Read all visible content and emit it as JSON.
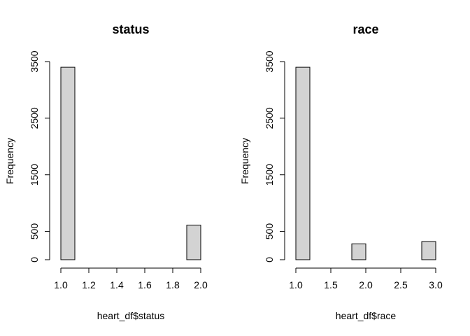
{
  "chart_data": [
    {
      "type": "bar",
      "title": "status",
      "xlabel": "heart_df$status",
      "ylabel": "Frequency",
      "xlim": [
        1.0,
        2.0
      ],
      "ylim": [
        0,
        3500
      ],
      "x_ticks": [
        "1.0",
        "1.2",
        "1.4",
        "1.6",
        "1.8",
        "2.0"
      ],
      "x_tick_values": [
        1.0,
        1.2,
        1.4,
        1.6,
        1.8,
        2.0
      ],
      "y_ticks": [
        "0",
        "500",
        "1500",
        "2500",
        "3500"
      ],
      "y_tick_values": [
        0,
        500,
        1500,
        2500,
        3500
      ],
      "bins": [
        {
          "x0": 1.0,
          "x1": 1.1,
          "value": 3400
        },
        {
          "x0": 1.1,
          "x1": 1.2,
          "value": 0
        },
        {
          "x0": 1.2,
          "x1": 1.3,
          "value": 0
        },
        {
          "x0": 1.3,
          "x1": 1.4,
          "value": 0
        },
        {
          "x0": 1.4,
          "x1": 1.5,
          "value": 0
        },
        {
          "x0": 1.5,
          "x1": 1.6,
          "value": 0
        },
        {
          "x0": 1.6,
          "x1": 1.7,
          "value": 0
        },
        {
          "x0": 1.7,
          "x1": 1.8,
          "value": 0
        },
        {
          "x0": 1.8,
          "x1": 1.9,
          "value": 0
        },
        {
          "x0": 1.9,
          "x1": 2.0,
          "value": 610
        }
      ],
      "grid": false,
      "bar_fill": "#d3d3d3",
      "bar_edge": "#000000"
    },
    {
      "type": "bar",
      "title": "race",
      "xlabel": "heart_df$race",
      "ylabel": "Frequency",
      "xlim": [
        1.0,
        3.0
      ],
      "ylim": [
        0,
        3500
      ],
      "x_ticks": [
        "1.0",
        "1.5",
        "2.0",
        "2.5",
        "3.0"
      ],
      "x_tick_values": [
        1.0,
        1.5,
        2.0,
        2.5,
        3.0
      ],
      "y_ticks": [
        "0",
        "500",
        "1500",
        "2500",
        "3500"
      ],
      "y_tick_values": [
        0,
        500,
        1500,
        2500,
        3500
      ],
      "bins": [
        {
          "x0": 1.0,
          "x1": 1.2,
          "value": 3400
        },
        {
          "x0": 1.2,
          "x1": 1.4,
          "value": 0
        },
        {
          "x0": 1.4,
          "x1": 1.6,
          "value": 0
        },
        {
          "x0": 1.6,
          "x1": 1.8,
          "value": 0
        },
        {
          "x0": 1.8,
          "x1": 2.0,
          "value": 280
        },
        {
          "x0": 2.0,
          "x1": 2.2,
          "value": 0
        },
        {
          "x0": 2.2,
          "x1": 2.4,
          "value": 0
        },
        {
          "x0": 2.4,
          "x1": 2.6,
          "value": 0
        },
        {
          "x0": 2.6,
          "x1": 2.8,
          "value": 0
        },
        {
          "x0": 2.8,
          "x1": 3.0,
          "value": 320
        }
      ],
      "grid": false,
      "bar_fill": "#d3d3d3",
      "bar_edge": "#000000"
    }
  ]
}
